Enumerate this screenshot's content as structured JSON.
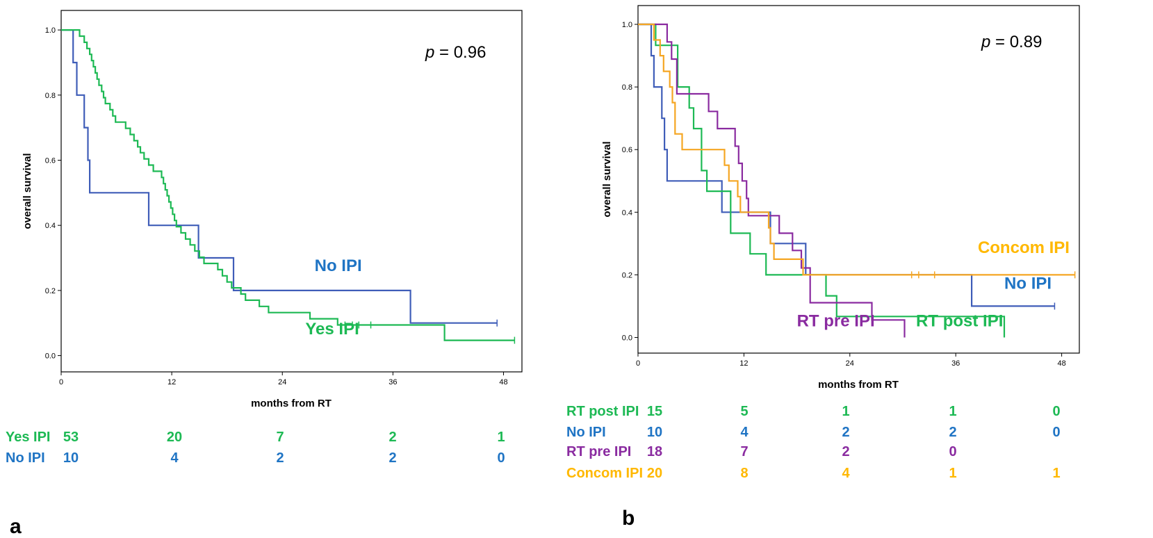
{
  "chart_data": [
    {
      "type": "line",
      "subtype": "kaplan-meier",
      "panel": "a",
      "xlabel": "months from RT",
      "ylabel": "overall survival",
      "xlim": [
        0,
        50
      ],
      "ylim": [
        -0.05,
        1.06
      ],
      "xticks": [
        0,
        12,
        24,
        36,
        48
      ],
      "yticks": [
        0.0,
        0.2,
        0.4,
        0.6,
        0.8,
        1.0
      ],
      "annotation": {
        "p_symbol": "p",
        "p_value": "= 0.96"
      },
      "series": [
        {
          "name": "No IPI",
          "color": "#3F5DB8",
          "label_color": "#1F74C4",
          "steps": [
            [
              0,
              1.0
            ],
            [
              1.3,
              0.9
            ],
            [
              1.7,
              0.8
            ],
            [
              2.5,
              0.7
            ],
            [
              2.9,
              0.6
            ],
            [
              3.1,
              0.5
            ],
            [
              9.5,
              0.4
            ],
            [
              14.9,
              0.3
            ],
            [
              18.7,
              0.2
            ],
            [
              37.9,
              0.1
            ],
            [
              47.3,
              0.1
            ]
          ],
          "censored": [
            47.3
          ]
        },
        {
          "name": "Yes IPI",
          "color": "#1DB954",
          "label_color": "#1DB954",
          "steps": [
            [
              0,
              1.0
            ],
            [
              2.0,
              0.981
            ],
            [
              2.5,
              0.962
            ],
            [
              2.8,
              0.943
            ],
            [
              3.1,
              0.925
            ],
            [
              3.3,
              0.906
            ],
            [
              3.5,
              0.887
            ],
            [
              3.7,
              0.868
            ],
            [
              3.9,
              0.849
            ],
            [
              4.1,
              0.83
            ],
            [
              4.4,
              0.811
            ],
            [
              4.6,
              0.792
            ],
            [
              4.8,
              0.774
            ],
            [
              5.3,
              0.755
            ],
            [
              5.6,
              0.736
            ],
            [
              5.9,
              0.717
            ],
            [
              7.0,
              0.698
            ],
            [
              7.5,
              0.679
            ],
            [
              7.9,
              0.66
            ],
            [
              8.3,
              0.641
            ],
            [
              8.6,
              0.623
            ],
            [
              9.0,
              0.604
            ],
            [
              9.5,
              0.585
            ],
            [
              10.0,
              0.566
            ],
            [
              10.9,
              0.547
            ],
            [
              11.1,
              0.528
            ],
            [
              11.3,
              0.509
            ],
            [
              11.5,
              0.491
            ],
            [
              11.7,
              0.472
            ],
            [
              11.9,
              0.453
            ],
            [
              12.1,
              0.434
            ],
            [
              12.3,
              0.415
            ],
            [
              12.5,
              0.396
            ],
            [
              13.0,
              0.377
            ],
            [
              13.5,
              0.358
            ],
            [
              14.0,
              0.34
            ],
            [
              14.5,
              0.321
            ],
            [
              15.0,
              0.302
            ],
            [
              15.5,
              0.283
            ],
            [
              17.0,
              0.264
            ],
            [
              17.5,
              0.245
            ],
            [
              18.0,
              0.226
            ],
            [
              18.5,
              0.208
            ],
            [
              19.5,
              0.189
            ],
            [
              20.0,
              0.17
            ],
            [
              21.5,
              0.151
            ],
            [
              22.5,
              0.132
            ],
            [
              27.0,
              0.113
            ],
            [
              30.0,
              0.094
            ],
            [
              41.6,
              0.047
            ],
            [
              49.2,
              0.047
            ]
          ],
          "censored": [
            30.8,
            31.6,
            32.3,
            33.6,
            49.2
          ]
        }
      ],
      "labels": [
        {
          "text": "No IPI",
          "series": "No IPI",
          "x": 27.5,
          "y": 0.26
        },
        {
          "text": "Yes IPI",
          "series": "Yes IPI",
          "x": 26.5,
          "y": 0.065
        }
      ],
      "risk_table": {
        "times": [
          0,
          12,
          24,
          36,
          48
        ],
        "rows": [
          {
            "label": "Yes IPI",
            "color": "#1DB954",
            "values": [
              "53",
              "20",
              "7",
              "2",
              "1"
            ]
          },
          {
            "label": "No IPI",
            "color": "#1F74C4",
            "values": [
              "10",
              "4",
              "2",
              "2",
              "0"
            ]
          }
        ]
      }
    },
    {
      "type": "line",
      "subtype": "kaplan-meier",
      "panel": "b",
      "xlabel": "months from RT",
      "ylabel": "overall survival",
      "xlim": [
        0,
        50
      ],
      "ylim": [
        -0.05,
        1.06
      ],
      "xticks": [
        0,
        12,
        24,
        36,
        48
      ],
      "yticks": [
        0.0,
        0.2,
        0.4,
        0.6,
        0.8,
        1.0
      ],
      "annotation": {
        "p_symbol": "p",
        "p_value": "= 0.89"
      },
      "series": [
        {
          "name": "No IPI",
          "color": "#3F5DB8",
          "label_color": "#1F74C4",
          "steps": [
            [
              0,
              1.0
            ],
            [
              1.5,
              0.9
            ],
            [
              1.8,
              0.8
            ],
            [
              2.7,
              0.7
            ],
            [
              3.0,
              0.6
            ],
            [
              3.3,
              0.5
            ],
            [
              9.5,
              0.4
            ],
            [
              15.0,
              0.3
            ],
            [
              19.0,
              0.2
            ],
            [
              37.8,
              0.1
            ],
            [
              47.2,
              0.1
            ]
          ],
          "censored": [
            47.2
          ]
        },
        {
          "name": "RT post IPI",
          "color": "#1DB954",
          "label_color": "#1DB954",
          "steps": [
            [
              0,
              1.0
            ],
            [
              2.0,
              0.933
            ],
            [
              4.5,
              0.8
            ],
            [
              5.8,
              0.733
            ],
            [
              6.3,
              0.667
            ],
            [
              7.2,
              0.533
            ],
            [
              7.8,
              0.467
            ],
            [
              10.5,
              0.333
            ],
            [
              12.7,
              0.267
            ],
            [
              14.5,
              0.2
            ],
            [
              21.3,
              0.133
            ],
            [
              22.5,
              0.067
            ],
            [
              41.5,
              0.0
            ]
          ],
          "censored": []
        },
        {
          "name": "RT pre IPI",
          "color": "#8A2BA0",
          "label_color": "#8A2BA0",
          "steps": [
            [
              0,
              1.0
            ],
            [
              3.3,
              0.944
            ],
            [
              3.8,
              0.889
            ],
            [
              4.4,
              0.778
            ],
            [
              8.0,
              0.722
            ],
            [
              9.0,
              0.667
            ],
            [
              11.0,
              0.611
            ],
            [
              11.4,
              0.556
            ],
            [
              11.8,
              0.5
            ],
            [
              12.3,
              0.444
            ],
            [
              12.5,
              0.389
            ],
            [
              16.0,
              0.333
            ],
            [
              17.5,
              0.278
            ],
            [
              18.5,
              0.222
            ],
            [
              19.5,
              0.111
            ],
            [
              26.5,
              0.056
            ],
            [
              30.2,
              0.0
            ]
          ],
          "censored": []
        },
        {
          "name": "Concom IPI",
          "color": "#F5A623",
          "label_color": "#FFB800",
          "steps": [
            [
              0,
              1.0
            ],
            [
              1.8,
              0.95
            ],
            [
              2.5,
              0.9
            ],
            [
              2.9,
              0.85
            ],
            [
              3.6,
              0.8
            ],
            [
              3.9,
              0.75
            ],
            [
              4.2,
              0.65
            ],
            [
              5.0,
              0.6
            ],
            [
              9.8,
              0.55
            ],
            [
              10.3,
              0.5
            ],
            [
              11.3,
              0.45
            ],
            [
              11.6,
              0.4
            ],
            [
              14.8,
              0.35
            ],
            [
              15.0,
              0.3
            ],
            [
              15.4,
              0.25
            ],
            [
              18.7,
              0.2
            ],
            [
              49.5,
              0.2
            ]
          ],
          "censored": [
            31.0,
            31.8,
            33.6,
            49.5
          ]
        }
      ],
      "labels": [
        {
          "text": "Concom IPI",
          "series": "Concom IPI",
          "x": 38.5,
          "y": 0.27
        },
        {
          "text": "No IPI",
          "series": "No IPI",
          "x": 41.5,
          "y": 0.155
        },
        {
          "text": "RT pre IPI",
          "series": "RT pre IPI",
          "x": 18.0,
          "y": 0.035
        },
        {
          "text": "RT post IPI",
          "series": "RT post IPI",
          "x": 31.5,
          "y": 0.035
        }
      ],
      "risk_table": {
        "times": [
          0,
          12,
          24,
          36,
          48
        ],
        "rows": [
          {
            "label": "RT post  IPI",
            "color": "#1DB954",
            "values": [
              "15",
              "5",
              "1",
              "1",
              "0"
            ]
          },
          {
            "label": "No IPI",
            "color": "#1F74C4",
            "values": [
              "10",
              "4",
              "2",
              "2",
              "0"
            ]
          },
          {
            "label": "RT pre  IPI",
            "color": "#8A2BA0",
            "values": [
              "18",
              "7",
              "2",
              "0",
              ""
            ]
          },
          {
            "label": "Concom  IPI",
            "color": "#FFB800",
            "values": [
              "20",
              "8",
              "4",
              "1",
              "1"
            ]
          }
        ]
      }
    }
  ],
  "panel_letters": {
    "a": "a",
    "b": "b"
  }
}
